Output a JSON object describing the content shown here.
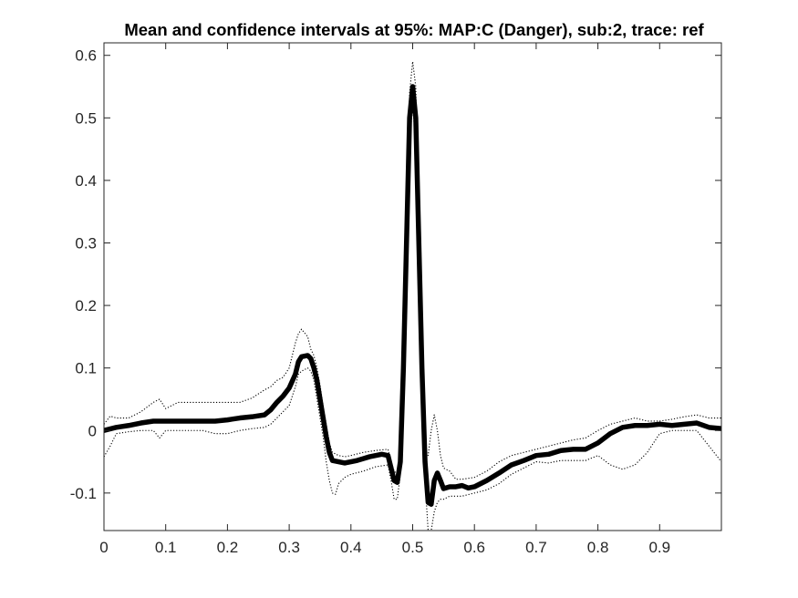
{
  "chart_data": {
    "type": "line",
    "title": "Mean and confidence intervals at 95%: MAP:C (Danger), sub:2, trace: ref",
    "xlabel": "",
    "ylabel": "",
    "xlim": [
      0,
      1
    ],
    "ylim": [
      -0.16,
      0.62
    ],
    "x_ticks": [
      0,
      0.1,
      0.2,
      0.3,
      0.4,
      0.5,
      0.6,
      0.7,
      0.8,
      0.9
    ],
    "x_tick_labels": [
      "0",
      "0.1",
      "0.2",
      "0.3",
      "0.4",
      "0.5",
      "0.6",
      "0.7",
      "0.8",
      "0.9"
    ],
    "y_ticks": [
      -0.1,
      0,
      0.1,
      0.2,
      0.3,
      0.4,
      0.5,
      0.6
    ],
    "y_tick_labels": [
      "-0.1",
      "0",
      "0.1",
      "0.2",
      "0.3",
      "0.4",
      "0.5",
      "0.6"
    ],
    "grid": false,
    "legend": "none",
    "series": [
      {
        "role": "mean",
        "style": "solid",
        "color": "#000000",
        "points": [
          [
            0,
            0.0
          ],
          [
            0.02,
            0.005
          ],
          [
            0.04,
            0.008
          ],
          [
            0.06,
            0.012
          ],
          [
            0.08,
            0.015
          ],
          [
            0.1,
            0.015
          ],
          [
            0.12,
            0.015
          ],
          [
            0.14,
            0.015
          ],
          [
            0.16,
            0.015
          ],
          [
            0.18,
            0.015
          ],
          [
            0.2,
            0.017
          ],
          [
            0.22,
            0.02
          ],
          [
            0.24,
            0.022
          ],
          [
            0.26,
            0.025
          ],
          [
            0.27,
            0.033
          ],
          [
            0.28,
            0.045
          ],
          [
            0.29,
            0.055
          ],
          [
            0.3,
            0.068
          ],
          [
            0.31,
            0.09
          ],
          [
            0.315,
            0.11
          ],
          [
            0.32,
            0.118
          ],
          [
            0.33,
            0.12
          ],
          [
            0.335,
            0.115
          ],
          [
            0.34,
            0.1
          ],
          [
            0.345,
            0.08
          ],
          [
            0.35,
            0.05
          ],
          [
            0.355,
            0.02
          ],
          [
            0.36,
            -0.01
          ],
          [
            0.365,
            -0.035
          ],
          [
            0.37,
            -0.048
          ],
          [
            0.38,
            -0.05
          ],
          [
            0.39,
            -0.052
          ],
          [
            0.4,
            -0.05
          ],
          [
            0.41,
            -0.048
          ],
          [
            0.42,
            -0.045
          ],
          [
            0.43,
            -0.042
          ],
          [
            0.44,
            -0.04
          ],
          [
            0.45,
            -0.038
          ],
          [
            0.46,
            -0.04
          ],
          [
            0.465,
            -0.06
          ],
          [
            0.47,
            -0.08
          ],
          [
            0.475,
            -0.083
          ],
          [
            0.48,
            -0.05
          ],
          [
            0.485,
            0.1
          ],
          [
            0.49,
            0.3
          ],
          [
            0.495,
            0.5
          ],
          [
            0.5,
            0.55
          ],
          [
            0.505,
            0.5
          ],
          [
            0.51,
            0.3
          ],
          [
            0.515,
            0.1
          ],
          [
            0.52,
            -0.05
          ],
          [
            0.525,
            -0.115
          ],
          [
            0.53,
            -0.118
          ],
          [
            0.535,
            -0.08
          ],
          [
            0.54,
            -0.068
          ],
          [
            0.545,
            -0.08
          ],
          [
            0.55,
            -0.093
          ],
          [
            0.56,
            -0.09
          ],
          [
            0.57,
            -0.09
          ],
          [
            0.58,
            -0.088
          ],
          [
            0.59,
            -0.092
          ],
          [
            0.6,
            -0.09
          ],
          [
            0.62,
            -0.08
          ],
          [
            0.64,
            -0.068
          ],
          [
            0.66,
            -0.055
          ],
          [
            0.68,
            -0.048
          ],
          [
            0.7,
            -0.04
          ],
          [
            0.72,
            -0.038
          ],
          [
            0.74,
            -0.032
          ],
          [
            0.76,
            -0.03
          ],
          [
            0.78,
            -0.03
          ],
          [
            0.8,
            -0.02
          ],
          [
            0.82,
            -0.005
          ],
          [
            0.84,
            0.005
          ],
          [
            0.86,
            0.008
          ],
          [
            0.88,
            0.008
          ],
          [
            0.9,
            0.01
          ],
          [
            0.92,
            0.008
          ],
          [
            0.94,
            0.01
          ],
          [
            0.96,
            0.012
          ],
          [
            0.98,
            0.005
          ],
          [
            1.0,
            0.003
          ]
        ]
      },
      {
        "role": "upper-ci",
        "style": "dotted",
        "color": "#000000",
        "points": [
          [
            0,
            0.01
          ],
          [
            0.01,
            0.023
          ],
          [
            0.02,
            0.02
          ],
          [
            0.04,
            0.02
          ],
          [
            0.06,
            0.03
          ],
          [
            0.08,
            0.045
          ],
          [
            0.09,
            0.05
          ],
          [
            0.1,
            0.035
          ],
          [
            0.12,
            0.045
          ],
          [
            0.14,
            0.045
          ],
          [
            0.16,
            0.045
          ],
          [
            0.18,
            0.045
          ],
          [
            0.2,
            0.045
          ],
          [
            0.22,
            0.045
          ],
          [
            0.24,
            0.052
          ],
          [
            0.26,
            0.065
          ],
          [
            0.27,
            0.07
          ],
          [
            0.28,
            0.08
          ],
          [
            0.29,
            0.085
          ],
          [
            0.3,
            0.1
          ],
          [
            0.31,
            0.14
          ],
          [
            0.315,
            0.155
          ],
          [
            0.32,
            0.162
          ],
          [
            0.33,
            0.15
          ],
          [
            0.335,
            0.13
          ],
          [
            0.34,
            0.12
          ],
          [
            0.345,
            0.1
          ],
          [
            0.35,
            0.072
          ],
          [
            0.355,
            0.04
          ],
          [
            0.36,
            0.01
          ],
          [
            0.365,
            -0.02
          ],
          [
            0.37,
            -0.035
          ],
          [
            0.38,
            -0.04
          ],
          [
            0.39,
            -0.042
          ],
          [
            0.4,
            -0.04
          ],
          [
            0.42,
            -0.035
          ],
          [
            0.44,
            -0.032
          ],
          [
            0.46,
            -0.03
          ],
          [
            0.465,
            -0.05
          ],
          [
            0.47,
            -0.065
          ],
          [
            0.475,
            -0.07
          ],
          [
            0.48,
            -0.03
          ],
          [
            0.485,
            0.12
          ],
          [
            0.49,
            0.33
          ],
          [
            0.495,
            0.54
          ],
          [
            0.5,
            0.59
          ],
          [
            0.505,
            0.55
          ],
          [
            0.51,
            0.35
          ],
          [
            0.515,
            0.12
          ],
          [
            0.52,
            -0.03
          ],
          [
            0.525,
            -0.04
          ],
          [
            0.53,
            0.0
          ],
          [
            0.535,
            0.025
          ],
          [
            0.54,
            0.0
          ],
          [
            0.545,
            -0.04
          ],
          [
            0.55,
            -0.06
          ],
          [
            0.56,
            -0.065
          ],
          [
            0.57,
            -0.078
          ],
          [
            0.58,
            -0.078
          ],
          [
            0.6,
            -0.075
          ],
          [
            0.62,
            -0.065
          ],
          [
            0.64,
            -0.05
          ],
          [
            0.66,
            -0.04
          ],
          [
            0.68,
            -0.035
          ],
          [
            0.7,
            -0.03
          ],
          [
            0.72,
            -0.025
          ],
          [
            0.74,
            -0.02
          ],
          [
            0.76,
            -0.015
          ],
          [
            0.78,
            -0.012
          ],
          [
            0.8,
            0.0
          ],
          [
            0.82,
            0.01
          ],
          [
            0.84,
            0.015
          ],
          [
            0.86,
            0.02
          ],
          [
            0.88,
            0.015
          ],
          [
            0.9,
            0.015
          ],
          [
            0.92,
            0.018
          ],
          [
            0.94,
            0.022
          ],
          [
            0.96,
            0.025
          ],
          [
            0.98,
            0.02
          ],
          [
            1.0,
            0.02
          ]
        ]
      },
      {
        "role": "lower-ci",
        "style": "dotted",
        "color": "#000000",
        "points": [
          [
            0,
            -0.042
          ],
          [
            0.01,
            -0.025
          ],
          [
            0.02,
            -0.005
          ],
          [
            0.04,
            -0.002
          ],
          [
            0.06,
            0.0
          ],
          [
            0.08,
            0.0
          ],
          [
            0.09,
            -0.012
          ],
          [
            0.1,
            0.0
          ],
          [
            0.12,
            0.0
          ],
          [
            0.14,
            0.0
          ],
          [
            0.16,
            0.0
          ],
          [
            0.18,
            -0.005
          ],
          [
            0.2,
            -0.005
          ],
          [
            0.22,
            0.0
          ],
          [
            0.24,
            0.003
          ],
          [
            0.26,
            0.005
          ],
          [
            0.27,
            0.01
          ],
          [
            0.28,
            0.02
          ],
          [
            0.29,
            0.03
          ],
          [
            0.3,
            0.04
          ],
          [
            0.31,
            0.07
          ],
          [
            0.315,
            0.09
          ],
          [
            0.32,
            0.095
          ],
          [
            0.33,
            0.1
          ],
          [
            0.335,
            0.095
          ],
          [
            0.34,
            0.08
          ],
          [
            0.345,
            0.05
          ],
          [
            0.35,
            0.02
          ],
          [
            0.355,
            -0.01
          ],
          [
            0.36,
            -0.05
          ],
          [
            0.365,
            -0.08
          ],
          [
            0.37,
            -0.1
          ],
          [
            0.375,
            -0.102
          ],
          [
            0.38,
            -0.085
          ],
          [
            0.39,
            -0.075
          ],
          [
            0.4,
            -0.07
          ],
          [
            0.42,
            -0.065
          ],
          [
            0.44,
            -0.058
          ],
          [
            0.46,
            -0.055
          ],
          [
            0.465,
            -0.08
          ],
          [
            0.47,
            -0.11
          ],
          [
            0.475,
            -0.11
          ],
          [
            0.48,
            -0.07
          ],
          [
            0.485,
            0.08
          ],
          [
            0.49,
            0.27
          ],
          [
            0.495,
            0.46
          ],
          [
            0.5,
            0.52
          ],
          [
            0.505,
            0.46
          ],
          [
            0.51,
            0.26
          ],
          [
            0.515,
            0.07
          ],
          [
            0.52,
            -0.08
          ],
          [
            0.525,
            -0.16
          ],
          [
            0.53,
            -0.16
          ],
          [
            0.535,
            -0.13
          ],
          [
            0.54,
            -0.115
          ],
          [
            0.545,
            -0.11
          ],
          [
            0.55,
            -0.11
          ],
          [
            0.56,
            -0.105
          ],
          [
            0.57,
            -0.105
          ],
          [
            0.58,
            -0.105
          ],
          [
            0.6,
            -0.1
          ],
          [
            0.62,
            -0.095
          ],
          [
            0.64,
            -0.085
          ],
          [
            0.66,
            -0.07
          ],
          [
            0.68,
            -0.06
          ],
          [
            0.7,
            -0.05
          ],
          [
            0.72,
            -0.052
          ],
          [
            0.74,
            -0.048
          ],
          [
            0.76,
            -0.048
          ],
          [
            0.78,
            -0.048
          ],
          [
            0.8,
            -0.04
          ],
          [
            0.82,
            -0.055
          ],
          [
            0.84,
            -0.062
          ],
          [
            0.86,
            -0.055
          ],
          [
            0.88,
            -0.035
          ],
          [
            0.9,
            -0.005
          ],
          [
            0.92,
            0.0
          ],
          [
            0.94,
            0.0
          ],
          [
            0.96,
            0.0
          ],
          [
            0.98,
            -0.025
          ],
          [
            1.0,
            -0.05
          ]
        ]
      }
    ]
  }
}
